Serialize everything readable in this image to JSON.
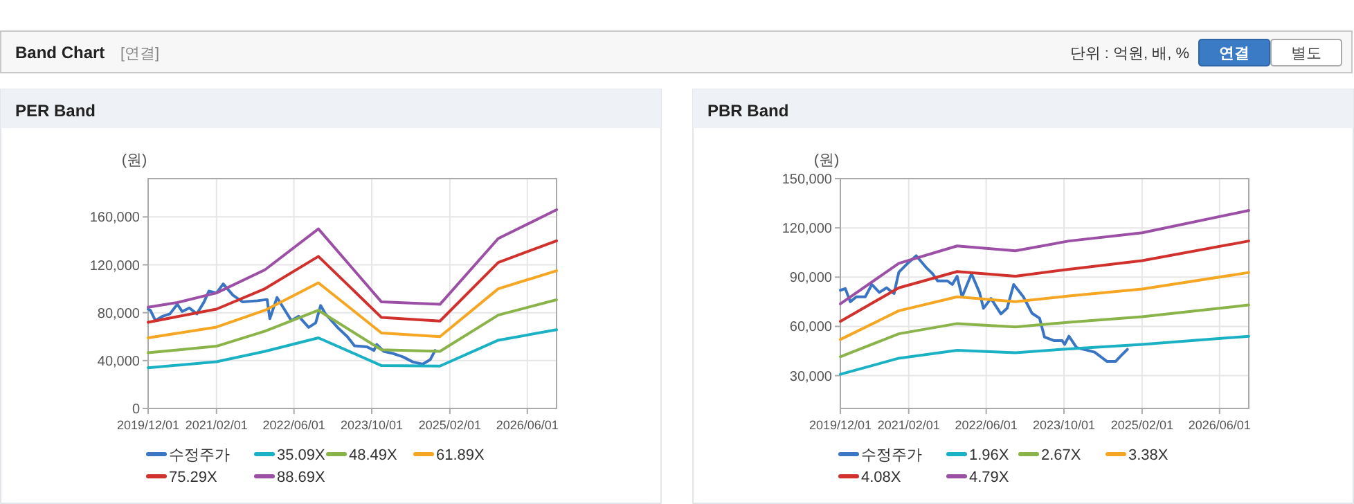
{
  "chart_data": [
    {
      "type": "other",
      "title": "Band Chart",
      "subtitle": "[연결]",
      "annotations": [
        "단위 : 억원, 배, %",
        "연결",
        "별도"
      ]
    },
    {
      "type": "line",
      "title": "PER Band",
      "ylabel": "(원)",
      "xlim": [
        "2019-12-01",
        "2026-12-01"
      ],
      "ylim": [
        0,
        192000
      ],
      "xticks": [
        {
          "value": "2019-12-01",
          "label": "2019/12/01"
        },
        {
          "value": "2021-02-01",
          "label": "2021/02/01"
        },
        {
          "value": "2022-06-01",
          "label": "2022/06/01"
        },
        {
          "value": "2023-10-01",
          "label": "2023/10/01"
        },
        {
          "value": "2025-02-01",
          "label": "2025/02/01"
        },
        {
          "value": "2026-06-01",
          "label": "2026/06/01"
        }
      ],
      "yticks": [
        {
          "value": 0,
          "label": "0"
        },
        {
          "value": 40000,
          "label": "40,000"
        },
        {
          "value": 80000,
          "label": "80,000"
        },
        {
          "value": 120000,
          "label": "120,000"
        },
        {
          "value": 160000,
          "label": "160,000"
        }
      ],
      "grid": true,
      "legend": "bottom",
      "marker": "none",
      "line_style": "solid",
      "series": [
        {
          "name": "수정주가",
          "color": "#3a75c4",
          "x": [
            "2019-12-01",
            "2019-12-15",
            "2020-01-15",
            "2020-03-01",
            "2020-04-15",
            "2020-06-01",
            "2020-07-01",
            "2020-08-15",
            "2020-10-01",
            "2020-11-15",
            "2020-12-15",
            "2021-02-01",
            "2021-03-15",
            "2021-05-15",
            "2021-07-15",
            "2021-10-15",
            "2021-12-15",
            "2022-01-01",
            "2022-02-15",
            "2022-04-01",
            "2022-05-15",
            "2022-07-01",
            "2022-09-01",
            "2022-10-15",
            "2022-11-15",
            "2022-12-15",
            "2023-03-01",
            "2023-05-01",
            "2023-06-15",
            "2023-09-01",
            "2023-10-15",
            "2023-11-01",
            "2023-12-15",
            "2024-02-15",
            "2024-04-15",
            "2024-06-15",
            "2024-08-15",
            "2024-10-01",
            "2024-11-01"
          ],
          "values": [
            83000,
            82000,
            73500,
            77000,
            79000,
            87000,
            81000,
            84000,
            79000,
            89000,
            98000,
            96500,
            104000,
            94600,
            89000,
            90000,
            91000,
            75000,
            92700,
            83000,
            73500,
            77000,
            67700,
            71500,
            86000,
            79000,
            67700,
            60000,
            52300,
            51500,
            48500,
            53500,
            47700,
            45800,
            43000,
            38800,
            37000,
            40800,
            48500
          ]
        },
        {
          "name": "35.09X",
          "color": "#1ab1c4",
          "x": [
            "2019-12",
            "2021-02",
            "2021-12",
            "2022-11",
            "2023-12",
            "2024-12",
            "2025-12",
            "2026-12"
          ],
          "values": [
            34000,
            39000,
            47700,
            59000,
            35800,
            35400,
            57000,
            65800
          ]
        },
        {
          "name": "48.49X",
          "color": "#8ab34a",
          "x": [
            "2019-12",
            "2021-02",
            "2021-12",
            "2022-11",
            "2023-12",
            "2024-12",
            "2025-12",
            "2026-12"
          ],
          "values": [
            46500,
            52000,
            64600,
            82000,
            49000,
            47700,
            78000,
            90800
          ]
        },
        {
          "name": "61.89X",
          "color": "#f5a623",
          "x": [
            "2019-12",
            "2021-02",
            "2021-12",
            "2022-11",
            "2023-12",
            "2024-12",
            "2025-12",
            "2026-12"
          ],
          "values": [
            59000,
            68000,
            82000,
            105000,
            63000,
            60000,
            100000,
            115000
          ]
        },
        {
          "name": "75.29X",
          "color": "#d0312d",
          "x": [
            "2019-12",
            "2021-02",
            "2021-12",
            "2022-11",
            "2023-12",
            "2024-12",
            "2025-12",
            "2026-12"
          ],
          "values": [
            72000,
            83000,
            100000,
            127000,
            76000,
            73000,
            122000,
            140000
          ]
        },
        {
          "name": "88.69X",
          "color": "#9b4fa5",
          "x": [
            "2019-12",
            "2020-06",
            "2021-02",
            "2021-12",
            "2022-11",
            "2023-12",
            "2024-12",
            "2025-12",
            "2026-12"
          ],
          "values": [
            84600,
            88500,
            96500,
            115800,
            150000,
            89000,
            87000,
            142000,
            166000
          ]
        }
      ]
    },
    {
      "type": "line",
      "title": "PBR Band",
      "ylabel": "(원)",
      "xlim": [
        "2019-12-01",
        "2026-12-01"
      ],
      "ylim": [
        10000,
        150000
      ],
      "xticks": [
        {
          "value": "2019-12-01",
          "label": "2019/12/01"
        },
        {
          "value": "2021-02-01",
          "label": "2021/02/01"
        },
        {
          "value": "2022-06-01",
          "label": "2022/06/01"
        },
        {
          "value": "2023-10-01",
          "label": "2023/10/01"
        },
        {
          "value": "2025-02-01",
          "label": "2025/02/01"
        },
        {
          "value": "2026-06-01",
          "label": "2026/06/01"
        }
      ],
      "yticks": [
        {
          "value": 30000,
          "label": "30,000"
        },
        {
          "value": 60000,
          "label": "60,000"
        },
        {
          "value": 90000,
          "label": "90,000"
        },
        {
          "value": 120000,
          "label": "120,000"
        },
        {
          "value": 150000,
          "label": "150,000"
        }
      ],
      "grid": true,
      "legend": "bottom",
      "marker": "none",
      "line_style": "solid",
      "series": [
        {
          "name": "수정주가",
          "color": "#3a75c4",
          "x": [
            "2019-12-01",
            "2020-01-01",
            "2020-02-01",
            "2020-03-10",
            "2020-05-05",
            "2020-06-15",
            "2020-08-01",
            "2020-09-15",
            "2020-11-01",
            "2020-12-01",
            "2021-02-01",
            "2021-03-20",
            "2021-05-20",
            "2021-07-01",
            "2021-08-01",
            "2021-10-01",
            "2021-11-01",
            "2021-12-01",
            "2022-01-01",
            "2022-03-01",
            "2022-04-20",
            "2022-05-15",
            "2022-07-01",
            "2022-09-01",
            "2022-10-10",
            "2022-11-20",
            "2023-01-20",
            "2023-03-15",
            "2023-05-01",
            "2023-06-01",
            "2023-08-01",
            "2023-09-20",
            "2023-10-05",
            "2023-11-01",
            "2023-12-20",
            "2024-02-15",
            "2024-04-10",
            "2024-06-25",
            "2024-08-20",
            "2024-10-01",
            "2024-11-01"
          ],
          "values": [
            82000,
            83000,
            75000,
            78000,
            78000,
            85500,
            80700,
            83500,
            80000,
            93000,
            99000,
            103000,
            96000,
            92000,
            87700,
            87700,
            85500,
            90500,
            78000,
            92000,
            80700,
            71000,
            77000,
            67600,
            71000,
            85500,
            78000,
            68000,
            65000,
            53500,
            51300,
            51300,
            49000,
            54000,
            47000,
            45700,
            44300,
            38700,
            38700,
            43000,
            46000
          ]
        },
        {
          "name": "1.96X",
          "color": "#1ab1c4",
          "x": [
            "2019-12",
            "2020-12",
            "2021-12",
            "2022-12",
            "2023-11",
            "2025-02",
            "2026-12"
          ],
          "values": [
            30800,
            40600,
            45400,
            44000,
            46300,
            49000,
            54000
          ]
        },
        {
          "name": "2.67X",
          "color": "#8ab34a",
          "x": [
            "2019-12",
            "2020-12",
            "2021-12",
            "2022-12",
            "2023-11",
            "2025-02",
            "2026-12"
          ],
          "values": [
            41500,
            55500,
            61700,
            59700,
            62500,
            65900,
            73000
          ]
        },
        {
          "name": "3.38X",
          "color": "#f5a623",
          "x": [
            "2019-12",
            "2020-12",
            "2021-12",
            "2022-12",
            "2023-11",
            "2025-02",
            "2026-12"
          ],
          "values": [
            52000,
            69500,
            78000,
            75000,
            78500,
            82700,
            92800
          ]
        },
        {
          "name": "4.08X",
          "color": "#d0312d",
          "x": [
            "2019-12",
            "2020-12",
            "2021-12",
            "2022-12",
            "2023-11",
            "2025-02",
            "2026-12"
          ],
          "values": [
            63000,
            83500,
            93400,
            90500,
            94800,
            100000,
            112000
          ]
        },
        {
          "name": "4.79X",
          "color": "#9b4fa5",
          "x": [
            "2019-12",
            "2020-12",
            "2021-12",
            "2022-12",
            "2023-11",
            "2025-02",
            "2026-12"
          ],
          "values": [
            73700,
            98400,
            109000,
            106000,
            112000,
            117000,
            130600
          ]
        }
      ]
    }
  ]
}
